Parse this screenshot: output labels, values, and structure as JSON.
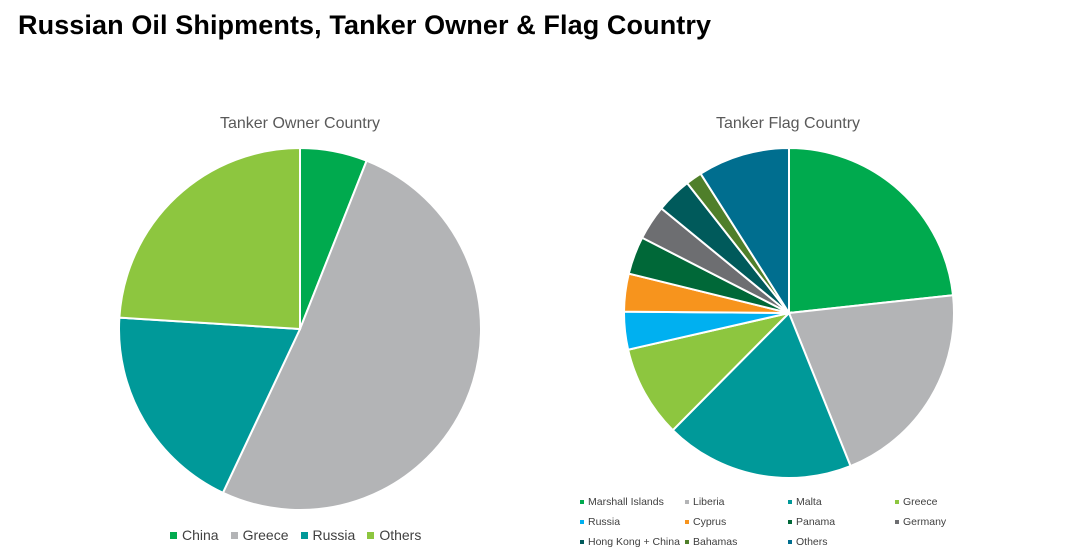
{
  "title": "Russian Oil Shipments, Tanker Owner & Flag Country",
  "chart_data": [
    {
      "type": "pie",
      "title": "Tanker Owner Country",
      "categories": [
        "China",
        "Greece",
        "Russia",
        "Others"
      ],
      "values": [
        6,
        51,
        19,
        24
      ],
      "unit": "%",
      "colors": [
        "#00AA4E",
        "#B3B4B6",
        "#009999",
        "#8DC63F"
      ],
      "start_angle_deg": 0,
      "legend_position": "bottom"
    },
    {
      "type": "pie",
      "title": "Tanker Flag Country",
      "categories": [
        "Marshall Islands",
        "Liberia",
        "Malta",
        "Greece",
        "Russia",
        "Cyprus",
        "Panama",
        "Germany",
        "Hong Kong + China",
        "Bahamas",
        "Others"
      ],
      "values": [
        22,
        19.5,
        17.5,
        8.5,
        3.5,
        3.5,
        3.5,
        3.2,
        3.3,
        1.5,
        8.5
      ],
      "unit": "%",
      "colors": [
        "#00AA4E",
        "#B3B4B6",
        "#009999",
        "#8DC63F",
        "#00B0F0",
        "#F7941D",
        "#006838",
        "#6D6E71",
        "#005A5B",
        "#4F7F2A",
        "#006E8F"
      ],
      "start_angle_deg": 0,
      "legend_position": "bottom"
    }
  ]
}
